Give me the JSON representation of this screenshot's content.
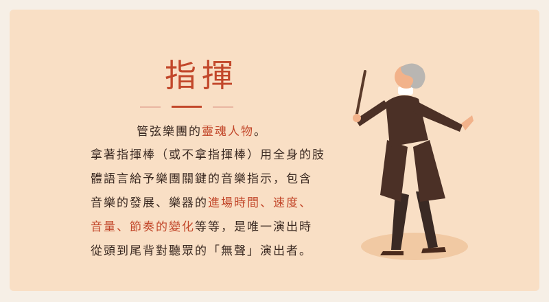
{
  "heading": "指揮",
  "intro": {
    "text": "管弦樂團的",
    "highlight": "靈魂人物",
    "end": "。"
  },
  "body": {
    "line1": "拿著指揮棒（或不拿指揮棒）用全身的肢",
    "line2": "體語言給予樂團關鍵的音樂指示，包含",
    "line3_text": "音樂的發展、樂器的",
    "line3_hl": "進場時間、速度、",
    "line4_hl": "音量、節奏的變化",
    "line4_text": "等等，是唯一演出時",
    "line5": "從頭到尾背對聽眾的「無聲」演出者。"
  },
  "colors": {
    "accent": "#c2472a",
    "panel": "#f9dfc5",
    "text": "#3b2a22"
  },
  "illustration": "conductor-figure"
}
